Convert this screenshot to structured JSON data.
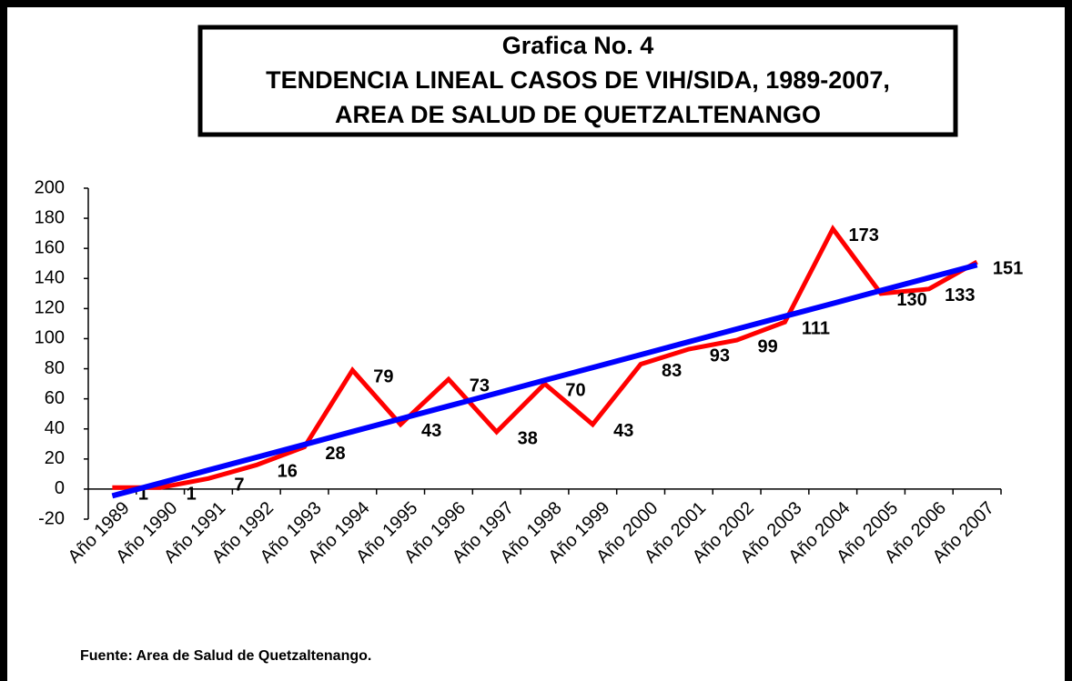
{
  "chart_data": {
    "type": "line",
    "title": [
      "Grafica No.  4",
      "TENDENCIA LINEAL CASOS DE VIH/SIDA, 1989-2007,",
      "AREA DE SALUD DE QUETZALTENANGO"
    ],
    "source": "Fuente: Area de Salud de Quetzaltenango.",
    "categories": [
      "Año 1989",
      "Año 1990",
      "Año 1991",
      "Año 1992",
      "Año 1993",
      "Año 1994",
      "Año 1995",
      "Año 1996",
      "Año 1997",
      "Año 1998",
      "Año 1999",
      "Año 2000",
      "Año 2001",
      "Año 2002",
      "Año 2003",
      "Año 2004",
      "Año 2005",
      "Año 2006",
      "Año 2007"
    ],
    "series": [
      {
        "color": "#ff0000",
        "values": [
          1,
          1,
          7,
          16,
          28,
          79,
          43,
          73,
          38,
          70,
          43,
          83,
          93,
          99,
          111,
          173,
          130,
          133,
          151
        ],
        "labels": true
      },
      {
        "color": "#0000ff",
        "values": [
          -4.5,
          4.0,
          12.6,
          21.1,
          29.6,
          38.2,
          46.7,
          55.2,
          63.7,
          72.3,
          80.8,
          89.3,
          97.9,
          106.4,
          114.9,
          123.4,
          132.0,
          140.5,
          149.0
        ],
        "labels": false
      }
    ],
    "ylim": [
      -20,
      200
    ],
    "yticks": [
      -20,
      0,
      20,
      40,
      60,
      80,
      100,
      120,
      140,
      160,
      180,
      200
    ],
    "grid": false
  }
}
